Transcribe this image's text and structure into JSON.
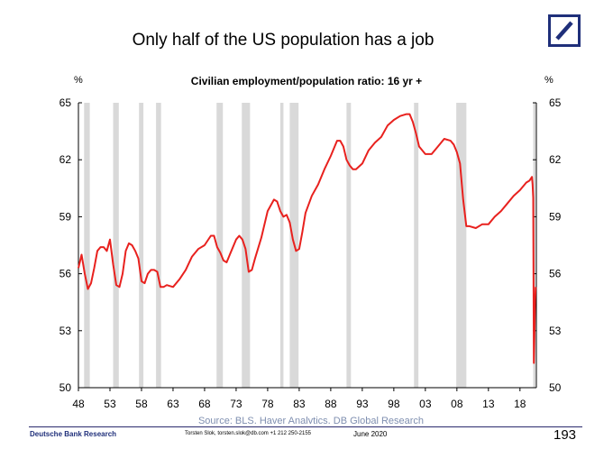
{
  "slide": {
    "title": "Only half of the US population has a job",
    "footer_brand": "Deutsche Bank Research",
    "footer_contact": "Torsten Slok, torsten.slok@db.com +1 212 250-2155",
    "footer_date": "June 2020",
    "page_number": "193"
  },
  "chart_data": {
    "type": "line",
    "title": "Civilian employment/population ratio: 16 yr +",
    "ylabel_left": "%",
    "ylabel_right": "%",
    "source": "Source: BLS, Haver Analytics, DB Global Research",
    "xlim": [
      1948,
      2020.6
    ],
    "ylim": [
      50,
      65
    ],
    "yticks": [
      50,
      53,
      56,
      59,
      62,
      65
    ],
    "ytick_labels": [
      "50",
      "53",
      "56",
      "59",
      "62",
      "65"
    ],
    "xticks": [
      1948,
      1953,
      1958,
      1963,
      1968,
      1973,
      1978,
      1983,
      1988,
      1993,
      1998,
      2003,
      2008,
      2013,
      2018
    ],
    "xtick_labels": [
      "48",
      "53",
      "58",
      "63",
      "68",
      "73",
      "78",
      "83",
      "88",
      "93",
      "98",
      "03",
      "08",
      "13",
      "18"
    ],
    "grid": false,
    "line_color": "#e8211e",
    "recession_color": "#d9d9d9",
    "recessions": [
      [
        1948.9,
        1949.8
      ],
      [
        1953.5,
        1954.4
      ],
      [
        1957.6,
        1958.3
      ],
      [
        1960.3,
        1961.1
      ],
      [
        1969.9,
        1970.9
      ],
      [
        1973.9,
        1975.2
      ],
      [
        1980.0,
        1980.5
      ],
      [
        1981.5,
        1982.9
      ],
      [
        1990.5,
        1991.2
      ],
      [
        2001.2,
        2001.9
      ],
      [
        2007.9,
        2009.5
      ],
      [
        2020.1,
        2020.3
      ]
    ],
    "series": [
      {
        "x": [
          1948.0,
          1948.5,
          1949.0,
          1949.5,
          1950.0,
          1950.5,
          1951.0,
          1951.5,
          1952.0,
          1952.5,
          1953.0,
          1953.5,
          1954.0,
          1954.5,
          1955.0,
          1955.5,
          1956.0,
          1956.5,
          1957.0,
          1957.5,
          1958.0,
          1958.5,
          1959.0,
          1959.5,
          1960.0,
          1960.5,
          1961.0,
          1961.5,
          1962.0,
          1963.0,
          1964.0,
          1965.0,
          1966.0,
          1967.0,
          1968.0,
          1969.0,
          1969.5,
          1970.0,
          1970.5,
          1971.0,
          1971.5,
          1972.0,
          1973.0,
          1973.5,
          1974.0,
          1974.5,
          1975.0,
          1975.5,
          1976.0,
          1977.0,
          1978.0,
          1979.0,
          1979.5,
          1980.0,
          1980.5,
          1981.0,
          1981.5,
          1982.0,
          1982.5,
          1983.0,
          1983.5,
          1984.0,
          1985.0,
          1986.0,
          1987.0,
          1988.0,
          1989.0,
          1989.5,
          1990.0,
          1990.5,
          1991.0,
          1991.5,
          1992.0,
          1993.0,
          1994.0,
          1995.0,
          1996.0,
          1997.0,
          1998.0,
          1999.0,
          2000.0,
          2000.5,
          2001.0,
          2001.5,
          2002.0,
          2003.0,
          2004.0,
          2005.0,
          2006.0,
          2007.0,
          2007.5,
          2008.0,
          2008.5,
          2009.0,
          2009.5,
          2010.0,
          2011.0,
          2012.0,
          2013.0,
          2014.0,
          2015.0,
          2016.0,
          2017.0,
          2018.0,
          2019.0,
          2019.5,
          2019.9,
          2020.0,
          2020.1,
          2020.2,
          2020.3,
          2020.4,
          2020.5
        ],
        "values": [
          56.3,
          57.0,
          56.0,
          55.2,
          55.5,
          56.3,
          57.2,
          57.4,
          57.4,
          57.2,
          57.8,
          56.5,
          55.4,
          55.3,
          56.0,
          57.2,
          57.6,
          57.5,
          57.2,
          56.8,
          55.6,
          55.5,
          56.0,
          56.2,
          56.2,
          56.1,
          55.3,
          55.3,
          55.4,
          55.3,
          55.7,
          56.2,
          56.9,
          57.3,
          57.5,
          58.0,
          58.0,
          57.4,
          57.1,
          56.7,
          56.6,
          57.0,
          57.8,
          58.0,
          57.8,
          57.3,
          56.1,
          56.2,
          56.8,
          57.9,
          59.3,
          59.9,
          59.8,
          59.3,
          59.0,
          59.1,
          58.7,
          57.8,
          57.2,
          57.3,
          58.2,
          59.2,
          60.1,
          60.7,
          61.5,
          62.2,
          63.0,
          63.0,
          62.7,
          62.0,
          61.7,
          61.5,
          61.5,
          61.8,
          62.5,
          62.9,
          63.2,
          63.8,
          64.1,
          64.3,
          64.4,
          64.4,
          64.0,
          63.4,
          62.7,
          62.3,
          62.3,
          62.7,
          63.1,
          63.0,
          62.8,
          62.4,
          61.8,
          59.9,
          58.5,
          58.5,
          58.4,
          58.6,
          58.6,
          59.0,
          59.3,
          59.7,
          60.1,
          60.4,
          60.8,
          60.9,
          61.1,
          60.7,
          60.0,
          51.3,
          52.8,
          54.6,
          55.3
        ]
      }
    ]
  }
}
